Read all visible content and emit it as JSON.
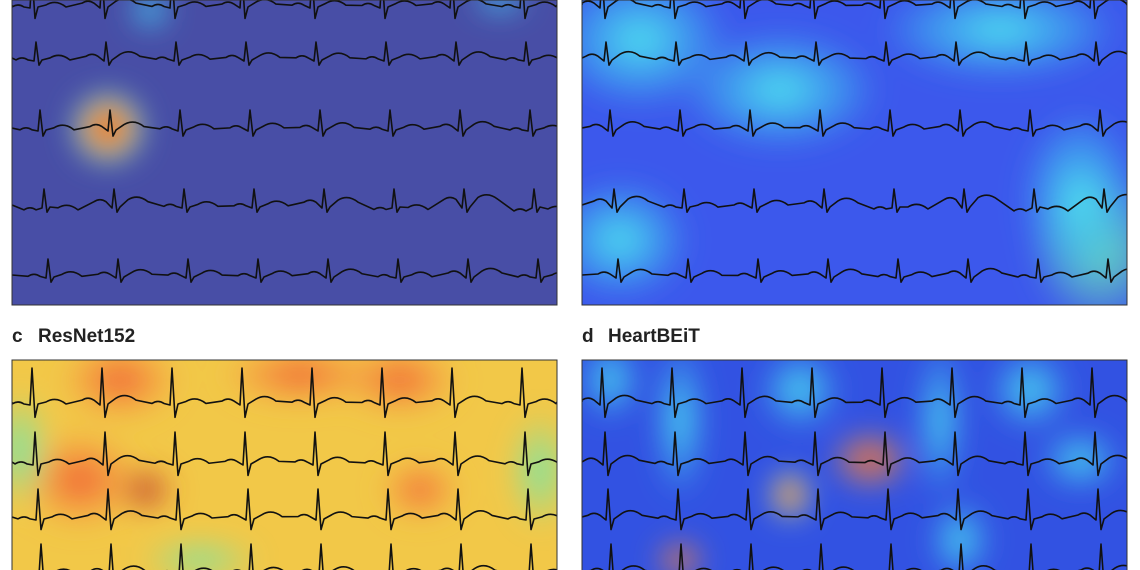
{
  "panels": [
    {
      "letter": "c",
      "title": "ResNet152"
    },
    {
      "letter": "d",
      "title": "HeartBEiT"
    }
  ]
}
